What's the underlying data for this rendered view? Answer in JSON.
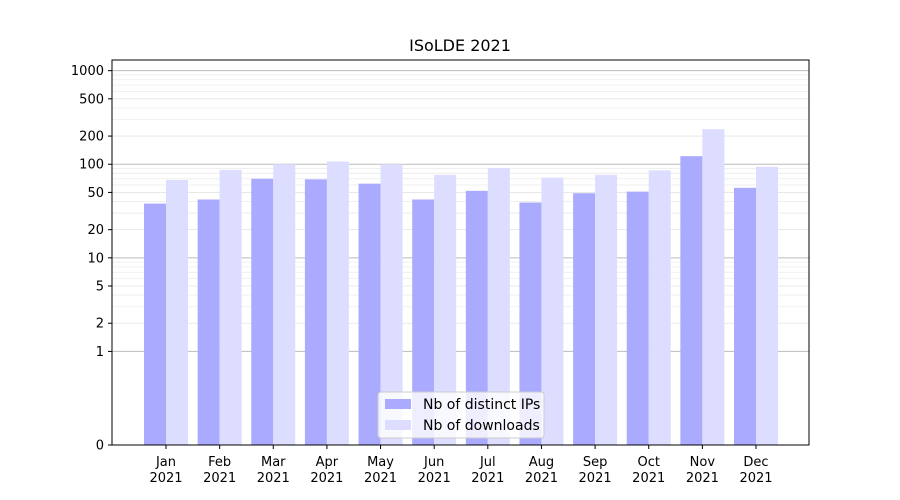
{
  "chart_data": {
    "type": "bar",
    "title": "ISoLDE 2021",
    "xlabel": "",
    "ylabel": "",
    "yscale": "symlog",
    "ylim": [
      0,
      1300
    ],
    "yticks": [
      0,
      1,
      2,
      5,
      10,
      20,
      50,
      100,
      200,
      500,
      1000
    ],
    "categories": [
      [
        "Jan",
        "2021"
      ],
      [
        "Feb",
        "2021"
      ],
      [
        "Mar",
        "2021"
      ],
      [
        "Apr",
        "2021"
      ],
      [
        "May",
        "2021"
      ],
      [
        "Jun",
        "2021"
      ],
      [
        "Jul",
        "2021"
      ],
      [
        "Aug",
        "2021"
      ],
      [
        "Sep",
        "2021"
      ],
      [
        "Oct",
        "2021"
      ],
      [
        "Nov",
        "2021"
      ],
      [
        "Dec",
        "2021"
      ]
    ],
    "series": [
      {
        "name": "Nb of distinct IPs",
        "color": "#aaaaff",
        "values": [
          38,
          42,
          70,
          69,
          62,
          42,
          52,
          39,
          49,
          51,
          122,
          56
        ]
      },
      {
        "name": "Nb of downloads",
        "color": "#ddddff",
        "values": [
          68,
          87,
          100,
          107,
          100,
          77,
          91,
          72,
          77,
          86,
          237,
          94
        ]
      }
    ],
    "legend_position": "lower center",
    "grid": true
  }
}
